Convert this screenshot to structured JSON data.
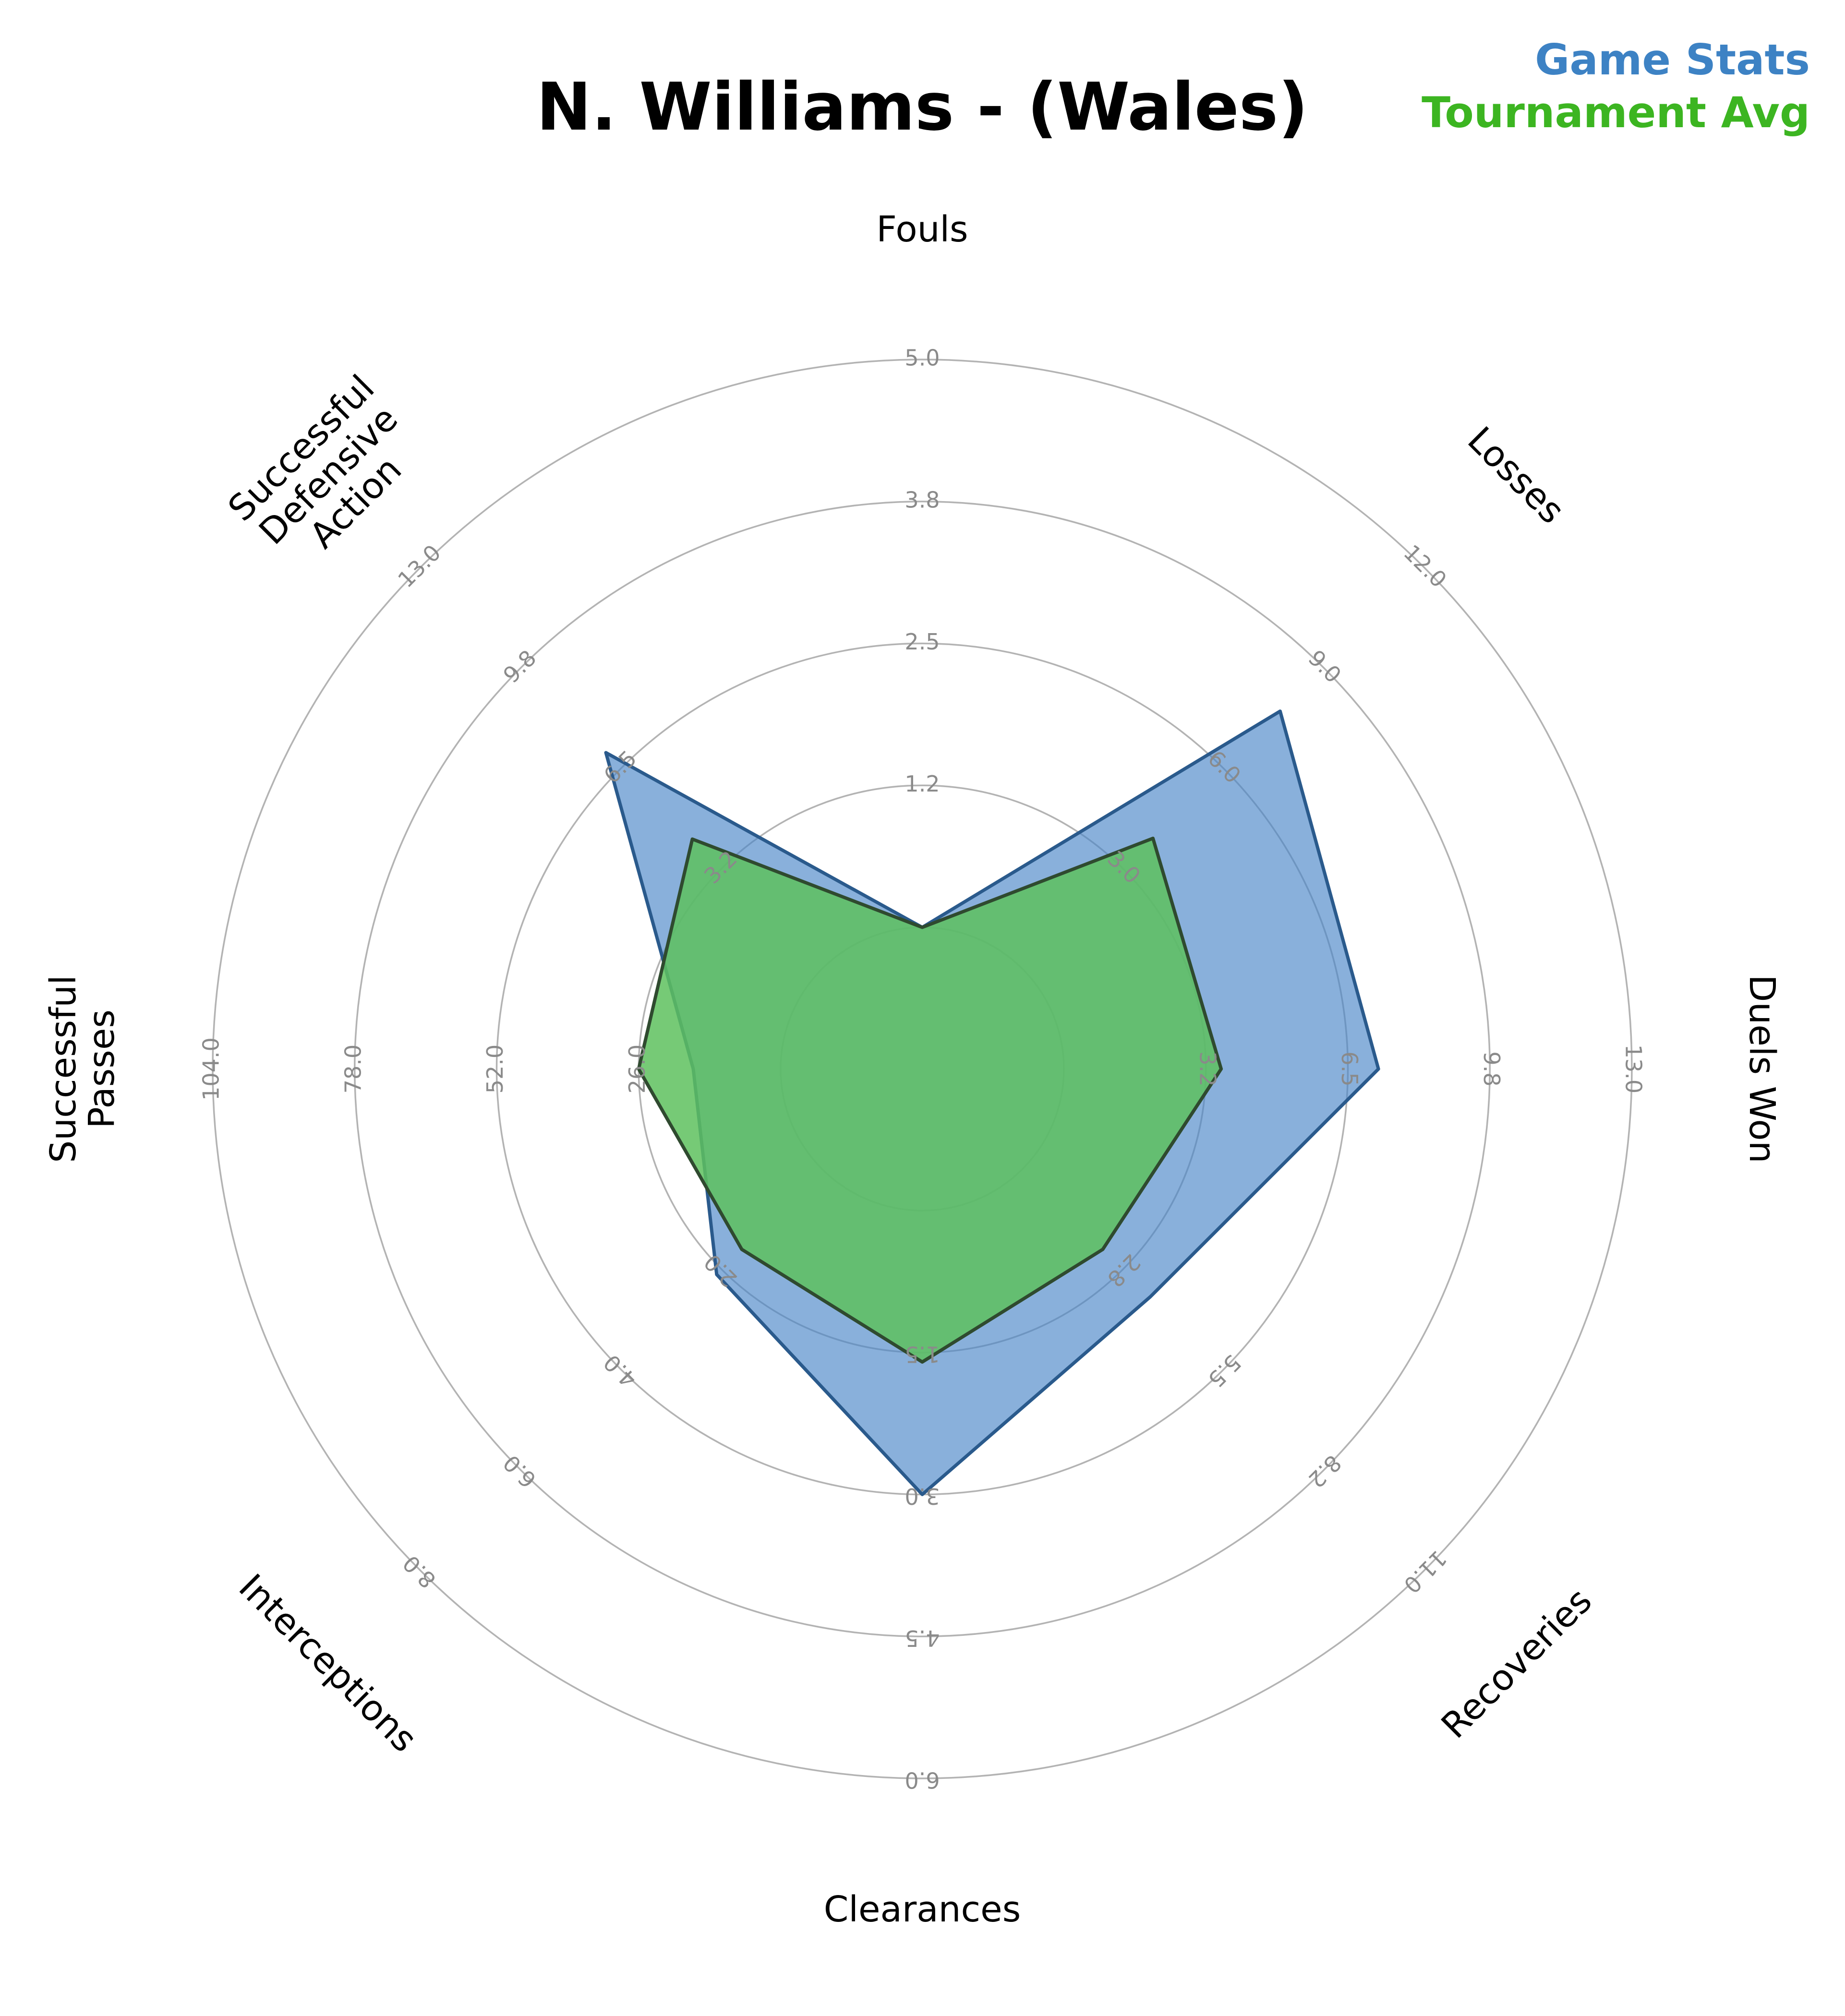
{
  "title": "N. Williams - (Wales)",
  "legend": {
    "game": "Game Stats",
    "tournament": "Tournament Avg"
  },
  "colors": {
    "game_fill": "#4a86c8",
    "game_stroke": "#2a5a8c",
    "tournament_fill": "#5ec15e",
    "tournament_overflow_fill": "#9fde72",
    "tournament_stroke": "#2f4a2f",
    "game_legend": "#3d82c4",
    "tournament_legend": "#3cb521",
    "grid": "#b3b3b3",
    "tick_text": "#8a8a8a"
  },
  "chart_data": {
    "type": "radar",
    "title": "N. Williams - (Wales)",
    "legend_position": "top-right",
    "grid": true,
    "axes": [
      {
        "name": "Fouls",
        "label_lines": [
          "Fouls"
        ],
        "ticks": [
          "1.2",
          "2.5",
          "3.8",
          "5.0"
        ],
        "range": [
          0,
          5
        ]
      },
      {
        "name": "Losses",
        "label_lines": [
          "Losses"
        ],
        "ticks": [
          "3.0",
          "6.0",
          "9.0",
          "12.0"
        ],
        "range": [
          0,
          12
        ]
      },
      {
        "name": "Duels Won",
        "label_lines": [
          "Duels Won"
        ],
        "ticks": [
          "3.2",
          "6.5",
          "9.8",
          "13.0"
        ],
        "range": [
          0,
          13
        ]
      },
      {
        "name": "Recoveries",
        "label_lines": [
          "Recoveries"
        ],
        "ticks": [
          "2.8",
          "5.5",
          "8.2",
          "11.0"
        ],
        "range": [
          0,
          11
        ]
      },
      {
        "name": "Clearances",
        "label_lines": [
          "Clearances"
        ],
        "ticks": [
          "1.5",
          "3.0",
          "4.5",
          "6.0"
        ],
        "range": [
          0,
          6
        ]
      },
      {
        "name": "Interceptions",
        "label_lines": [
          "Interceptions"
        ],
        "ticks": [
          "2.0",
          "4.0",
          "6.0",
          "8.0"
        ],
        "range": [
          0,
          8
        ]
      },
      {
        "name": "Successful Passes",
        "label_lines": [
          "Successful",
          "Passes"
        ],
        "ticks": [
          "26.0",
          "52.0",
          "78.0",
          "104.0"
        ],
        "range": [
          0,
          104
        ]
      },
      {
        "name": "Successful Defensive Action",
        "label_lines": [
          "Successful",
          "Defensive",
          "Action"
        ],
        "ticks": [
          "3.2",
          "6.5",
          "9.8",
          "13.0"
        ],
        "range": [
          0,
          13
        ]
      }
    ],
    "series": [
      {
        "name": "Game Stats",
        "values": [
          0,
          7.7,
          7.2,
          3.5,
          3.0,
          2.1,
          16.0,
          7.0
        ]
      },
      {
        "name": "Tournament Avg",
        "values": [
          0,
          3.9,
          3.6,
          2.2,
          1.6,
          1.6,
          26.0,
          4.2
        ]
      }
    ]
  }
}
